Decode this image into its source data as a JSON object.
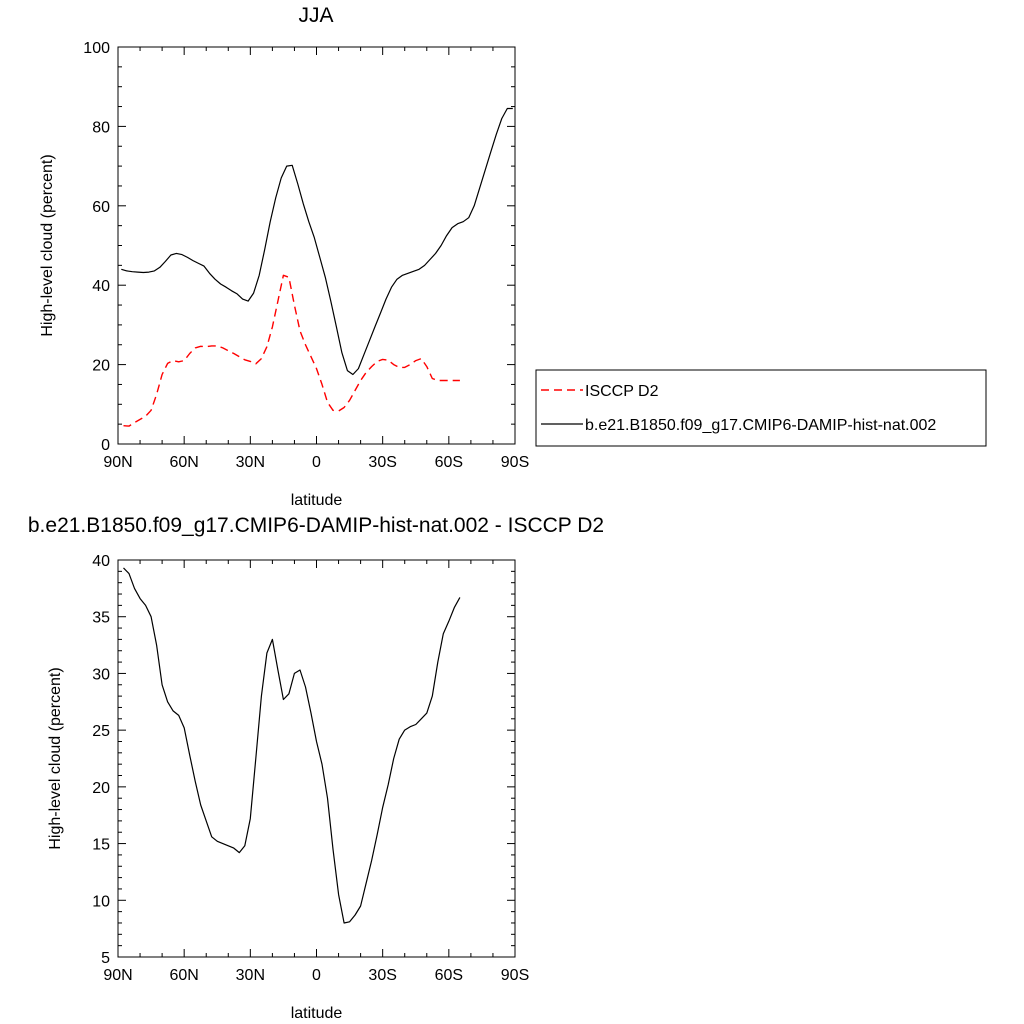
{
  "chart_data": [
    {
      "type": "line",
      "title": "JJA",
      "xlabel": "latitude",
      "ylabel": "High-level cloud (percent)",
      "xlim": [
        90,
        -90
      ],
      "ylim": [
        0,
        100
      ],
      "x_ticks": [
        90,
        60,
        30,
        0,
        -30,
        -60,
        -90
      ],
      "x_tick_labels": [
        "90N",
        "60N",
        "30N",
        "0",
        "30S",
        "60S",
        "90S"
      ],
      "y_ticks": [
        0,
        20,
        40,
        60,
        80,
        100
      ],
      "y_tick_labels": [
        "0",
        "20",
        "40",
        "60",
        "80",
        "100"
      ],
      "legend_placement": "right",
      "series": [
        {
          "name": "ISCCP D2",
          "color": "#ff0000",
          "dash": "dashed",
          "x": [
            87.5,
            85,
            82.5,
            80,
            77.5,
            75,
            72.5,
            70,
            67.5,
            65,
            62.5,
            60,
            57.5,
            55,
            52.5,
            50,
            47.5,
            45,
            42.5,
            40,
            37.5,
            35,
            32.5,
            30,
            27.5,
            25,
            22.5,
            20,
            17.5,
            15,
            12.5,
            10,
            7.5,
            5,
            2.5,
            0,
            -2.5,
            -5,
            -7.5,
            -10,
            -12.5,
            -15,
            -17.5,
            -20,
            -22.5,
            -25,
            -27.5,
            -30,
            -32.5,
            -35,
            -37.5,
            -40,
            -42.5,
            -45,
            -47.5,
            -50,
            -52.5,
            -55,
            -57.5,
            -60,
            -62.5,
            -65
          ],
          "y": [
            4.6,
            4.5,
            5.4,
            6.2,
            7.0,
            8.5,
            12.5,
            17.5,
            20.3,
            21.0,
            20.7,
            21.0,
            22.8,
            24.2,
            24.6,
            24.5,
            24.7,
            24.7,
            24.2,
            23.5,
            22.8,
            22.0,
            21.2,
            20.8,
            20.2,
            21.5,
            24.5,
            29.5,
            36.0,
            42.5,
            42.0,
            35.0,
            28.5,
            25.0,
            22.0,
            19.0,
            15.0,
            10.5,
            8.5,
            8.3,
            9.2,
            11.0,
            13.5,
            16.0,
            18.0,
            19.5,
            20.8,
            21.3,
            21.1,
            20.0,
            19.3,
            19.3,
            20.0,
            21.0,
            21.5,
            19.5,
            16.5,
            16.0,
            16.0,
            16.0,
            16.0,
            16.0
          ]
        },
        {
          "name": "b.e21.B1850.f09_g17.CMIP6-DAMIP-hist-nat.002",
          "color": "#000000",
          "dash": "solid",
          "x": [
            88.5,
            86,
            83.5,
            81,
            78.5,
            76,
            73.5,
            71,
            68.5,
            66,
            63.5,
            61,
            58.5,
            56,
            53.5,
            51,
            48.5,
            46,
            43.5,
            41,
            38.5,
            36,
            33.5,
            31,
            28.5,
            26,
            23.5,
            21,
            18.5,
            16,
            13.5,
            11,
            8.5,
            6,
            3.5,
            1,
            -1.5,
            -4,
            -6.5,
            -9,
            -11.5,
            -14,
            -16.5,
            -19,
            -21.5,
            -24,
            -26.5,
            -29,
            -31.5,
            -34,
            -36.5,
            -39,
            -41.5,
            -44,
            -46.5,
            -49,
            -51.5,
            -54,
            -56.5,
            -59,
            -61.5,
            -64,
            -66.5,
            -69,
            -71.5,
            -74,
            -76.5,
            -79,
            -81.5,
            -84,
            -86.5,
            -89
          ],
          "y": [
            44.0,
            43.6,
            43.4,
            43.3,
            43.2,
            43.3,
            43.6,
            44.5,
            46.0,
            47.6,
            48.0,
            47.7,
            47.0,
            46.2,
            45.5,
            44.8,
            43.0,
            41.5,
            40.3,
            39.5,
            38.6,
            37.8,
            36.5,
            36.0,
            38.0,
            42.5,
            49.0,
            56.0,
            62.0,
            67.0,
            70.0,
            70.2,
            65.5,
            60.5,
            56.0,
            52.0,
            47.0,
            42.0,
            36.0,
            29.5,
            23.0,
            18.5,
            17.5,
            19.0,
            22.5,
            26.0,
            29.5,
            33.0,
            36.5,
            39.5,
            41.5,
            42.5,
            43.0,
            43.5,
            44.0,
            45.0,
            46.5,
            48.0,
            50.0,
            52.5,
            54.5,
            55.5,
            56.0,
            57.0,
            60.0,
            64.5,
            69.0,
            73.5,
            78.0,
            82.0,
            84.5,
            84.5
          ]
        }
      ]
    },
    {
      "type": "line",
      "title": "b.e21.B1850.f09_g17.CMIP6-DAMIP-hist-nat.002 - ISCCP D2",
      "xlabel": "latitude",
      "ylabel": "High-level cloud (percent)",
      "xlim": [
        90,
        -90
      ],
      "ylim": [
        5,
        40
      ],
      "x_ticks": [
        90,
        60,
        30,
        0,
        -30,
        -60,
        -90
      ],
      "x_tick_labels": [
        "90N",
        "60N",
        "30N",
        "0",
        "30S",
        "60S",
        "90S"
      ],
      "y_ticks": [
        5,
        10,
        15,
        20,
        25,
        30,
        35,
        40
      ],
      "y_tick_labels": [
        "5",
        "10",
        "15",
        "20",
        "25",
        "30",
        "35",
        "40"
      ],
      "series": [
        {
          "color": "#000000",
          "dash": "solid",
          "x": [
            87.5,
            85,
            82.5,
            80,
            77.5,
            75,
            72.5,
            70,
            67.5,
            65,
            62.5,
            60,
            57.5,
            55,
            52.5,
            50,
            47.5,
            45,
            42.5,
            40,
            37.5,
            35,
            32.5,
            30,
            27.5,
            25,
            22.5,
            20,
            17.5,
            15,
            12.5,
            10,
            7.5,
            5,
            2.5,
            0,
            -2.5,
            -5,
            -7.5,
            -10,
            -12.5,
            -15,
            -17.5,
            -20,
            -22.5,
            -25,
            -27.5,
            -30,
            -32.5,
            -35,
            -37.5,
            -40,
            -42.5,
            -45,
            -47.5,
            -50,
            -52.5,
            -55,
            -57.5,
            -60,
            -62.5,
            -65
          ],
          "y": [
            39.3,
            38.8,
            37.5,
            36.6,
            36.0,
            35.0,
            32.5,
            29.0,
            27.5,
            26.7,
            26.3,
            25.2,
            22.8,
            20.5,
            18.4,
            17.0,
            15.6,
            15.2,
            15.0,
            14.8,
            14.6,
            14.2,
            14.8,
            17.2,
            22.5,
            28.0,
            31.8,
            33.0,
            30.3,
            27.7,
            28.2,
            30.0,
            30.3,
            28.8,
            26.5,
            24.0,
            22.0,
            19.0,
            14.5,
            10.5,
            8.0,
            8.1,
            8.7,
            9.5,
            11.5,
            13.5,
            15.8,
            18.2,
            20.2,
            22.5,
            24.2,
            25.0,
            25.3,
            25.5,
            26.0,
            26.5,
            28.0,
            31.0,
            33.5,
            34.6,
            35.8,
            36.7
          ]
        }
      ]
    }
  ]
}
